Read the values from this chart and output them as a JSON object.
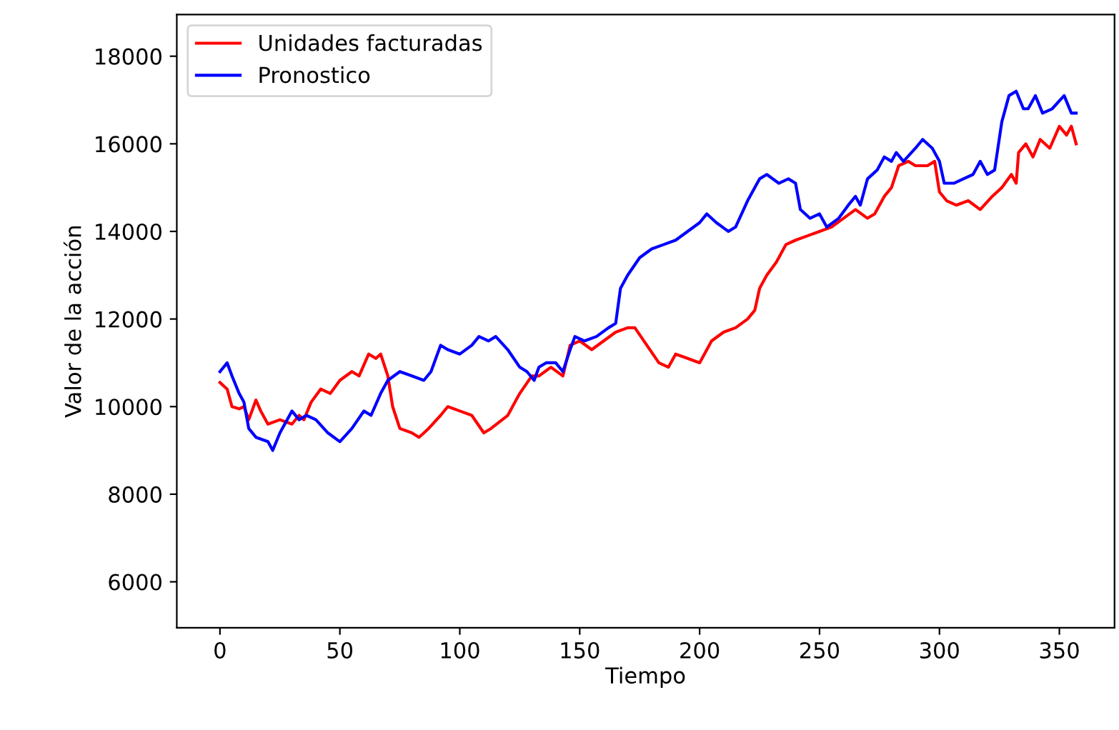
{
  "chart_data": {
    "type": "line",
    "xlabel": "Tiempo",
    "ylabel": "Valor de la acción",
    "xlim": [
      -18,
      373
    ],
    "xticks": [
      0,
      50,
      100,
      150,
      200,
      250,
      300,
      350
    ],
    "ylim": [
      4950,
      18950
    ],
    "yticks": [
      6000,
      8000,
      10000,
      12000,
      14000,
      16000,
      18000
    ],
    "legend": "top left",
    "grid": false,
    "series": [
      {
        "name": "Unidades facturadas",
        "color": "#ff0000",
        "x": [
          0,
          3,
          5,
          8,
          10,
          12,
          15,
          17,
          20,
          25,
          30,
          33,
          35,
          38,
          42,
          46,
          50,
          55,
          58,
          62,
          65,
          67,
          70,
          72,
          75,
          80,
          83,
          87,
          92,
          95,
          100,
          105,
          110,
          113,
          120,
          125,
          130,
          133,
          138,
          143,
          146,
          150,
          155,
          160,
          165,
          170,
          173,
          178,
          183,
          187,
          190,
          195,
          200,
          205,
          210,
          215,
          220,
          223,
          225,
          228,
          232,
          236,
          240,
          245,
          250,
          255,
          260,
          265,
          270,
          273,
          277,
          280,
          283,
          287,
          290,
          295,
          298,
          300,
          303,
          307,
          312,
          317,
          322,
          326,
          330,
          332,
          333,
          336,
          339,
          342,
          346,
          350,
          353,
          355,
          357
        ],
        "values": [
          10550,
          10400,
          10000,
          9950,
          10000,
          9700,
          10150,
          9900,
          9600,
          9700,
          9600,
          9800,
          9700,
          10100,
          10400,
          10300,
          10600,
          10800,
          10700,
          11200,
          11100,
          11200,
          10700,
          10000,
          9500,
          9400,
          9300,
          9500,
          9800,
          10000,
          9900,
          9800,
          9400,
          9500,
          9800,
          10300,
          10700,
          10700,
          10900,
          10700,
          11400,
          11500,
          11300,
          11500,
          11700,
          11800,
          11800,
          11400,
          11000,
          10900,
          11200,
          11100,
          11000,
          11500,
          11700,
          11800,
          12000,
          12200,
          12700,
          13000,
          13300,
          13700,
          13800,
          13900,
          14000,
          14100,
          14300,
          14500,
          14300,
          14400,
          14800,
          15000,
          15500,
          15600,
          15500,
          15500,
          15600,
          14900,
          14700,
          14600,
          14700,
          14500,
          14800,
          15000,
          15300,
          15100,
          15800,
          16000,
          15700,
          16100,
          15900,
          16400,
          16200,
          16400,
          16000
        ]
      },
      {
        "name": "Pronostico",
        "color": "#0000ff",
        "x": [
          0,
          3,
          5,
          8,
          10,
          12,
          15,
          20,
          22,
          25,
          28,
          30,
          33,
          36,
          40,
          45,
          50,
          55,
          60,
          63,
          67,
          70,
          75,
          80,
          85,
          88,
          92,
          95,
          100,
          105,
          108,
          112,
          115,
          120,
          125,
          128,
          131,
          133,
          136,
          140,
          143,
          146,
          148,
          152,
          157,
          162,
          165,
          167,
          170,
          175,
          180,
          185,
          190,
          195,
          200,
          203,
          207,
          212,
          215,
          220,
          225,
          228,
          233,
          237,
          240,
          242,
          246,
          250,
          253,
          258,
          262,
          265,
          267,
          270,
          274,
          277,
          280,
          282,
          285,
          290,
          293,
          297,
          300,
          302,
          306,
          310,
          314,
          317,
          320,
          323,
          326,
          329,
          332,
          335,
          337,
          340,
          343,
          347,
          352,
          355,
          357
        ],
        "values": [
          10800,
          11000,
          10700,
          10300,
          10100,
          9500,
          9300,
          9200,
          9000,
          9400,
          9700,
          9900,
          9700,
          9800,
          9700,
          9400,
          9200,
          9500,
          9900,
          9800,
          10300,
          10600,
          10800,
          10700,
          10600,
          10800,
          11400,
          11300,
          11200,
          11400,
          11600,
          11500,
          11600,
          11300,
          10900,
          10800,
          10600,
          10900,
          11000,
          11000,
          10800,
          11300,
          11600,
          11500,
          11600,
          11800,
          11900,
          12700,
          13000,
          13400,
          13600,
          13700,
          13800,
          14000,
          14200,
          14400,
          14200,
          14000,
          14100,
          14700,
          15200,
          15300,
          15100,
          15200,
          15100,
          14500,
          14300,
          14400,
          14100,
          14300,
          14600,
          14800,
          14600,
          15200,
          15400,
          15700,
          15600,
          15800,
          15600,
          15900,
          16100,
          15900,
          15600,
          15100,
          15100,
          15200,
          15300,
          15600,
          15300,
          15400,
          16500,
          17100,
          17200,
          16800,
          16800,
          17100,
          16700,
          16800,
          17100,
          16700,
          16700
        ]
      }
    ]
  }
}
